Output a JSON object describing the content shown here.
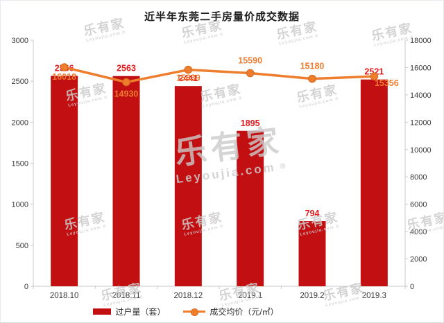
{
  "chart_data": {
    "type": "bar+line",
    "title": "近半年东莞二手房量价成交数据",
    "categories": [
      "2018.10",
      "2018.11",
      "2018.12",
      "2019.1",
      "2019.2",
      "2019.3"
    ],
    "series": [
      {
        "name": "过户量（套）",
        "type": "bar",
        "axis": "left",
        "color": "#C20F11",
        "label_color": "#E3191C",
        "values": [
          2566,
          2563,
          2441,
          1895,
          794,
          2521
        ]
      },
      {
        "name": "成交均价（元/㎡）",
        "type": "line",
        "axis": "right",
        "color": "#EE7D2E",
        "dot_border": "#D96A1E",
        "label_color": "#ED7D31",
        "values": [
          16018,
          14930,
          15839,
          15590,
          15180,
          15356
        ]
      }
    ],
    "left_axis": {
      "min": 0,
      "max": 3000,
      "step": 500,
      "ticks": [
        "3000",
        "2500",
        "2000",
        "1500",
        "1000",
        "500",
        "0"
      ]
    },
    "right_axis": {
      "min": 0,
      "max": 18000,
      "step": 2000,
      "ticks": [
        "18000",
        "16000",
        "14000",
        "12000",
        "10000",
        "8000",
        "6000",
        "4000",
        "2000",
        "0"
      ]
    },
    "legend_position": "bottom",
    "grid": false
  },
  "watermark": {
    "text": "乐有家",
    "subtext": "Leyoujia.com",
    "registered": "®"
  }
}
